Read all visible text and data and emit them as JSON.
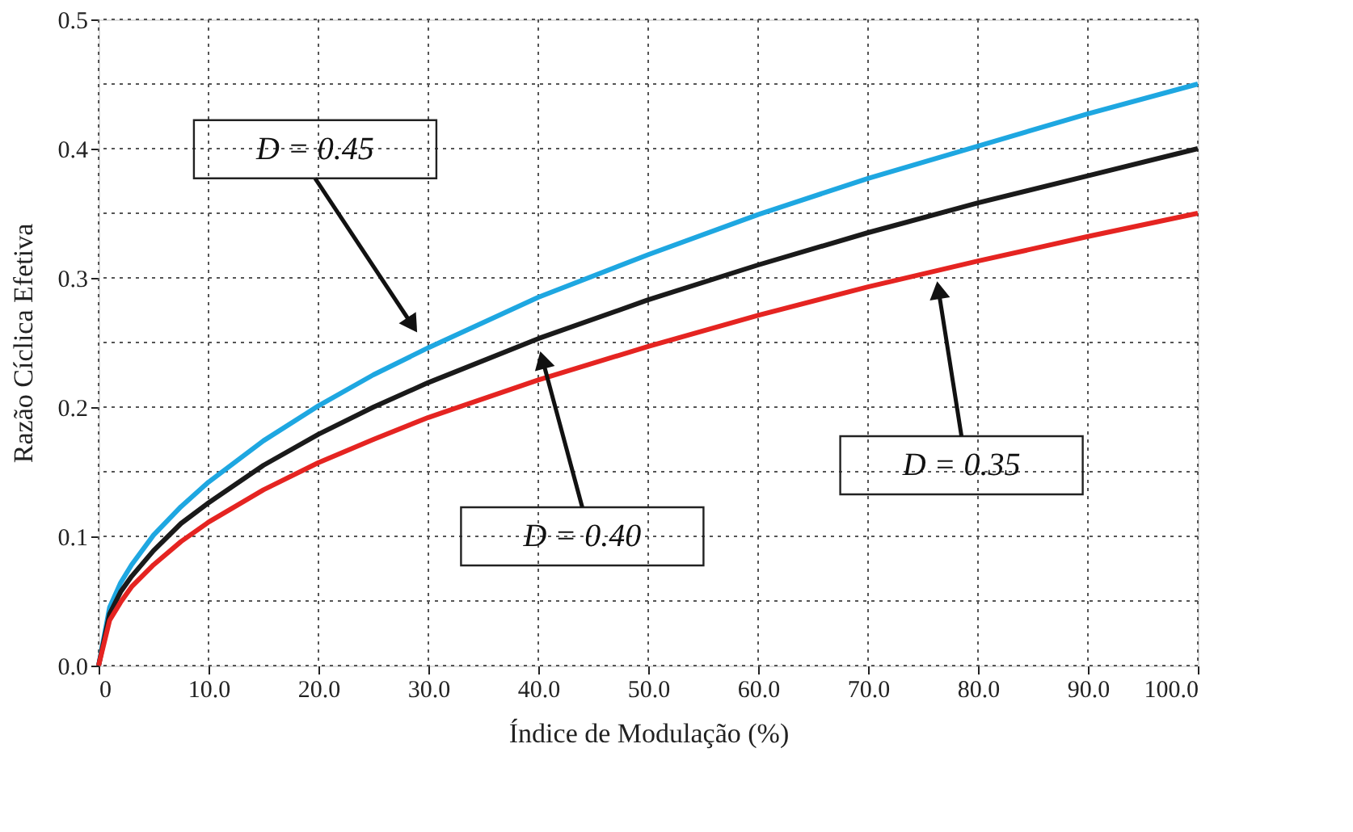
{
  "chart_data": {
    "type": "line",
    "xlabel": "Índice de Modulação (%)",
    "ylabel": "Razão Cíclica Efetiva",
    "x": [
      0,
      1,
      2,
      3,
      5,
      7.5,
      10,
      15,
      20,
      25,
      30,
      40,
      50,
      60,
      70,
      80,
      90,
      100
    ],
    "series": [
      {
        "color": "#1ea7e1",
        "values": [
          0,
          0.045,
          0.064,
          0.078,
          0.101,
          0.123,
          0.142,
          0.174,
          0.201,
          0.225,
          0.246,
          0.285,
          0.318,
          0.349,
          0.377,
          0.402,
          0.427,
          0.45
        ]
      },
      {
        "color": "#1a1a1a",
        "values": [
          0,
          0.04,
          0.057,
          0.069,
          0.089,
          0.11,
          0.126,
          0.155,
          0.179,
          0.2,
          0.219,
          0.253,
          0.283,
          0.31,
          0.335,
          0.358,
          0.379,
          0.4
        ]
      },
      {
        "color": "#e52421",
        "values": [
          0,
          0.035,
          0.049,
          0.061,
          0.078,
          0.096,
          0.111,
          0.136,
          0.157,
          0.175,
          0.192,
          0.221,
          0.247,
          0.271,
          0.293,
          0.313,
          0.332,
          0.35
        ]
      }
    ],
    "xlim": [
      0,
      100
    ],
    "xticks": [
      0,
      {
        "value": 10,
        "label": "10.0"
      },
      {
        "value": 20,
        "label": "20.0"
      },
      {
        "value": 30,
        "label": "30.0"
      },
      {
        "value": 40,
        "label": "40.0"
      },
      {
        "value": 50,
        "label": "50.0"
      },
      {
        "value": 60,
        "label": "60.0"
      },
      {
        "value": 70,
        "label": "70.0"
      },
      {
        "value": 80,
        "label": "80.0"
      },
      {
        "value": 90,
        "label": "90.0"
      },
      {
        "value": 100,
        "label": "100.0"
      }
    ],
    "ylim": [
      0,
      0.5
    ],
    "yticks": [
      {
        "value": 0,
        "label": "0.0"
      },
      {
        "value": 0.05,
        "label": null
      },
      0.1,
      {
        "value": 0.15,
        "label": null
      },
      0.2,
      {
        "value": 0.25,
        "label": null
      },
      0.3,
      {
        "value": 0.35,
        "label": null
      },
      0.4,
      {
        "value": 0.45,
        "label": null
      },
      0.5
    ],
    "grid": true,
    "line_style": "solid",
    "marker": "none",
    "annotations": [
      "D = 0.45",
      "D = 0.40",
      "D = 0.35"
    ]
  }
}
